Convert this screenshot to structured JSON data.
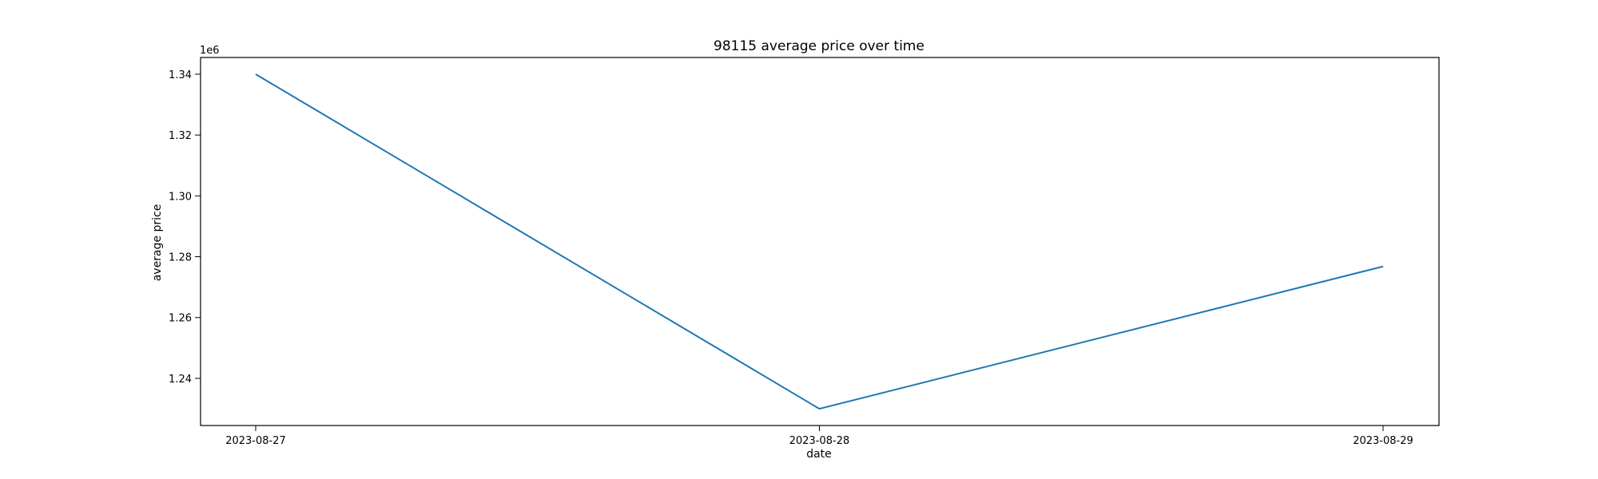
{
  "chart_data": {
    "type": "line",
    "title": "98115 average price over time",
    "xlabel": "date",
    "ylabel": "average price",
    "y_offset_label": "1e6",
    "x": [
      "2023-08-27",
      "2023-08-28",
      "2023-08-29"
    ],
    "x_ticks": [
      "2023-08-27",
      "2023-08-28",
      "2023-08-29"
    ],
    "series": [
      {
        "values": [
          1340000,
          1230000,
          1276800
        ]
      }
    ],
    "y_ticks": [
      1240000,
      1260000,
      1280000,
      1300000,
      1320000,
      1340000
    ],
    "y_tick_labels": [
      "1.24",
      "1.26",
      "1.28",
      "1.30",
      "1.32",
      "1.34"
    ],
    "ylim": [
      1224500,
      1345500
    ],
    "grid": false,
    "colors": {
      "line": "#1f77b4",
      "axes": "#000000"
    }
  }
}
